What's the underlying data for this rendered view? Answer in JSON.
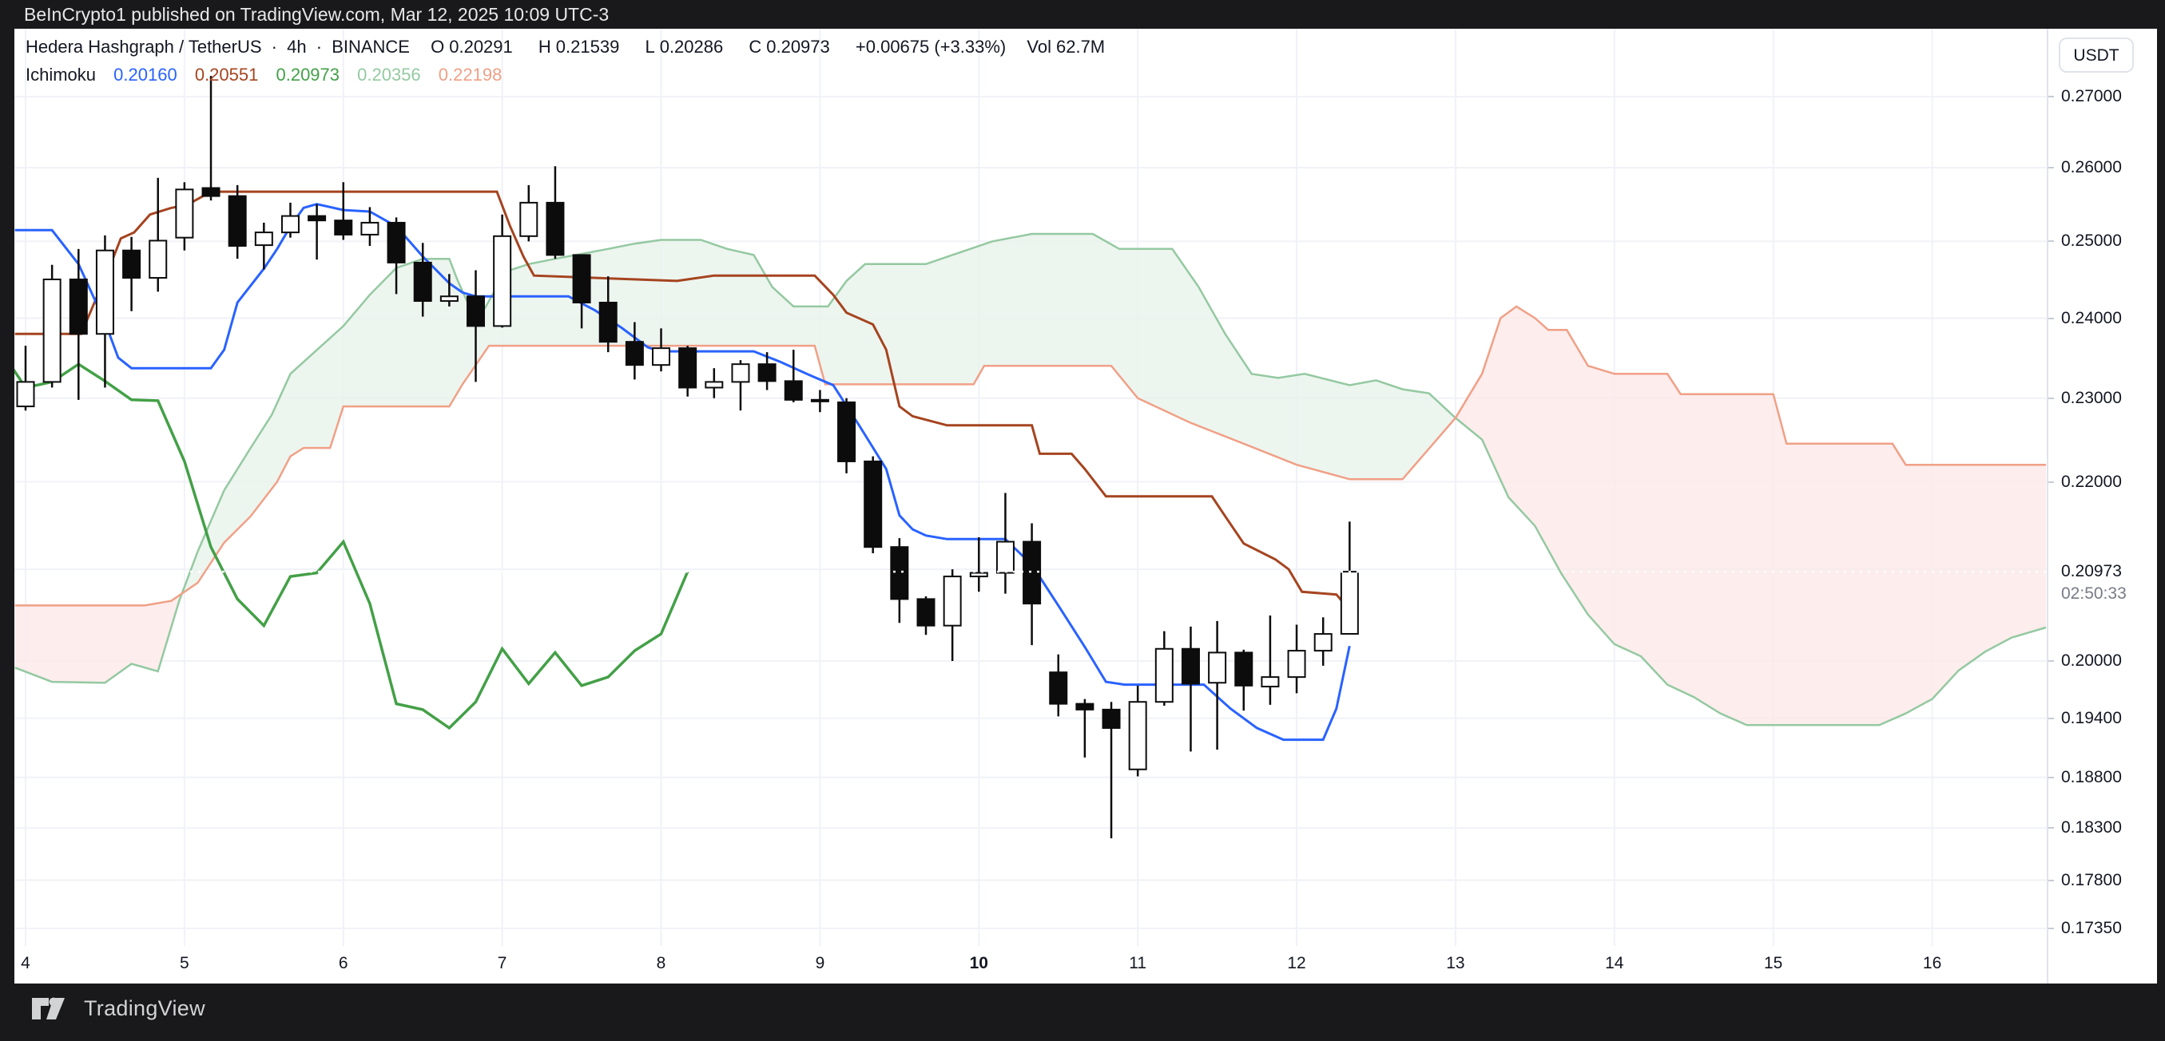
{
  "titlebar": {
    "text": "BeInCrypto1 published on TradingView.com, Mar 12, 2025 10:09 UTC-3"
  },
  "legend": {
    "symbol": "Hedera Hashgraph / TetherUS",
    "sep1": "·",
    "interval": "4h",
    "sep2": "·",
    "exchange": "BINANCE",
    "o_label": "O",
    "o": "0.20291",
    "h_label": "H",
    "h": "0.21539",
    "l_label": "L",
    "l": "0.20286",
    "c_label": "C",
    "c": "0.20973",
    "change": "+0.00675 (+3.33%)",
    "vol_label": "Vol",
    "vol": "62.7M",
    "indicator": "Ichimoku",
    "values": [
      {
        "text": "0.20160",
        "color": "#2962FF"
      },
      {
        "text": "0.20551",
        "color": "#A5441F"
      },
      {
        "text": "0.20973",
        "color": "#43A047"
      },
      {
        "text": "0.20356",
        "color": "#94C9A1"
      },
      {
        "text": "0.22198",
        "color": "#F0A086"
      }
    ]
  },
  "price_axis": {
    "currency_button": "USDT",
    "labels": [
      {
        "price": 0.27,
        "text": "0.27000"
      },
      {
        "price": 0.26,
        "text": "0.26000"
      },
      {
        "price": 0.25,
        "text": "0.25000"
      },
      {
        "price": 0.24,
        "text": "0.24000"
      },
      {
        "price": 0.23,
        "text": "0.23000"
      },
      {
        "price": 0.22,
        "text": "0.22000"
      },
      {
        "price": 0.2,
        "text": "0.20000"
      },
      {
        "price": 0.194,
        "text": "0.19400"
      },
      {
        "price": 0.188,
        "text": "0.18800"
      },
      {
        "price": 0.183,
        "text": "0.18300"
      },
      {
        "price": 0.178,
        "text": "0.17800"
      },
      {
        "price": 0.1735,
        "text": "0.17350"
      }
    ],
    "grid_prices": [
      0.27,
      0.26,
      0.25,
      0.24,
      0.23,
      0.22,
      0.21,
      0.2,
      0.194,
      0.188,
      0.183,
      0.178,
      0.1735
    ],
    "current": {
      "text": "0.20973",
      "price": 0.20973,
      "countdown": "02:50:33"
    }
  },
  "time_axis": {
    "labels": [
      {
        "text": "4",
        "day": 0,
        "bold": false
      },
      {
        "text": "5",
        "day": 1,
        "bold": false
      },
      {
        "text": "6",
        "day": 2,
        "bold": false
      },
      {
        "text": "7",
        "day": 3,
        "bold": false
      },
      {
        "text": "8",
        "day": 4,
        "bold": false
      },
      {
        "text": "9",
        "day": 5,
        "bold": false
      },
      {
        "text": "10",
        "day": 6,
        "bold": true
      },
      {
        "text": "11",
        "day": 7,
        "bold": false
      },
      {
        "text": "12",
        "day": 8,
        "bold": false
      },
      {
        "text": "13",
        "day": 9,
        "bold": false
      },
      {
        "text": "14",
        "day": 10,
        "bold": false
      },
      {
        "text": "15",
        "day": 11,
        "bold": false
      },
      {
        "text": "16",
        "day": 12,
        "bold": false
      }
    ]
  },
  "footer": {
    "brand": "TradingView"
  },
  "colors": {
    "up_fill": "#FFFFFF",
    "down_fill": "#0C0C0C",
    "candle_border": "#0C0C0C",
    "wick": "#0C0C0C",
    "grid": "#F0F2F7",
    "tenkan": "#2962FF",
    "kijun": "#A5441F",
    "chikou": "#43A047",
    "span_a": "#94C9A1",
    "span_b": "#F0A086",
    "cloud_bull": "#E9F3EB",
    "cloud_bear": "#FCE9E9",
    "price_line": "#FFFFFF"
  },
  "chart_data": {
    "type": "candlestick",
    "title": "Hedera Hashgraph / TetherUS 4h BINANCE with Ichimoku",
    "x_axis": {
      "unit": "4h candles from Mar 4 00:00",
      "candles_per_day": 6,
      "range_days": [
        4,
        16
      ]
    },
    "y_axis": {
      "scale": "log",
      "ylim": [
        0.1684,
        0.2742
      ],
      "grid": true,
      "legend_position": "top-left"
    },
    "current_bar": {
      "open": 0.20291,
      "high": 0.21539,
      "low": 0.20286,
      "close": 0.20973,
      "volume": "62.7M"
    },
    "candles_ohlc": [
      [
        0.229,
        0.2365,
        0.2285,
        0.232
      ],
      [
        0.232,
        0.2469,
        0.2313,
        0.245
      ],
      [
        0.245,
        0.249,
        0.2298,
        0.238
      ],
      [
        0.238,
        0.2508,
        0.2313,
        0.2488
      ],
      [
        0.2488,
        0.2506,
        0.2409,
        0.2452
      ],
      [
        0.2452,
        0.2586,
        0.2434,
        0.2501
      ],
      [
        0.2505,
        0.258,
        0.2488,
        0.257
      ],
      [
        0.2572,
        0.273,
        0.2555,
        0.2561
      ],
      [
        0.2561,
        0.2576,
        0.2477,
        0.2494
      ],
      [
        0.2495,
        0.2525,
        0.2463,
        0.2512
      ],
      [
        0.2512,
        0.2552,
        0.2505,
        0.2534
      ],
      [
        0.2534,
        0.255,
        0.2476,
        0.2528
      ],
      [
        0.2528,
        0.258,
        0.2502,
        0.2509
      ],
      [
        0.2509,
        0.2546,
        0.2494,
        0.2525
      ],
      [
        0.2525,
        0.2532,
        0.2431,
        0.2472
      ],
      [
        0.2472,
        0.2498,
        0.2402,
        0.2422
      ],
      [
        0.2422,
        0.2457,
        0.2415,
        0.2428
      ],
      [
        0.2428,
        0.2462,
        0.232,
        0.239
      ],
      [
        0.239,
        0.2536,
        0.2388,
        0.2507
      ],
      [
        0.2507,
        0.2576,
        0.25,
        0.2552
      ],
      [
        0.2552,
        0.2602,
        0.2477,
        0.2482
      ],
      [
        0.2482,
        0.2482,
        0.2387,
        0.242
      ],
      [
        0.242,
        0.2454,
        0.2357,
        0.237
      ],
      [
        0.237,
        0.2395,
        0.2323,
        0.2341
      ],
      [
        0.2341,
        0.2387,
        0.2333,
        0.2362
      ],
      [
        0.2362,
        0.2365,
        0.2302,
        0.2313
      ],
      [
        0.2313,
        0.2337,
        0.23,
        0.232
      ],
      [
        0.232,
        0.2347,
        0.2285,
        0.2342
      ],
      [
        0.2342,
        0.2357,
        0.231,
        0.2321
      ],
      [
        0.2321,
        0.236,
        0.2295,
        0.2298
      ],
      [
        0.2298,
        0.231,
        0.2283,
        0.2297
      ],
      [
        0.2295,
        0.23,
        0.221,
        0.2224
      ],
      [
        0.2224,
        0.223,
        0.2118,
        0.2125
      ],
      [
        0.2125,
        0.2135,
        0.2041,
        0.2067
      ],
      [
        0.2067,
        0.207,
        0.2028,
        0.2038
      ],
      [
        0.2038,
        0.21,
        0.2,
        0.2092
      ],
      [
        0.2092,
        0.2136,
        0.2075,
        0.2096
      ],
      [
        0.2096,
        0.2187,
        0.2073,
        0.2131
      ],
      [
        0.2131,
        0.2152,
        0.2017,
        0.2062
      ],
      [
        0.1988,
        0.2007,
        0.1942,
        0.1955
      ],
      [
        0.1955,
        0.196,
        0.19,
        0.1949
      ],
      [
        0.1949,
        0.1957,
        0.182,
        0.193
      ],
      [
        0.1888,
        0.1974,
        0.1881,
        0.1957
      ],
      [
        0.1957,
        0.2032,
        0.1953,
        0.2013
      ],
      [
        0.2013,
        0.2037,
        0.1906,
        0.1976
      ],
      [
        0.1977,
        0.2043,
        0.1908,
        0.2009
      ],
      [
        0.2009,
        0.2012,
        0.1948,
        0.1974
      ],
      [
        0.1973,
        0.2049,
        0.1954,
        0.1983
      ],
      [
        0.1983,
        0.2039,
        0.1966,
        0.2011
      ],
      [
        0.2011,
        0.2047,
        0.1995,
        0.2029
      ],
      [
        0.20291,
        0.21539,
        0.20286,
        0.20973
      ]
    ],
    "ichimoku": {
      "values": {
        "conversion": 0.2016,
        "base": 0.20551,
        "lagging": 0.20973,
        "leading_a": 0.20356,
        "leading_b": 0.22198
      },
      "lagging_displacement": -25,
      "conversion_points": [
        [
          -0.4,
          0.2515
        ],
        [
          1,
          0.2515
        ],
        [
          2,
          0.247
        ],
        [
          3,
          0.2395
        ],
        [
          3.5,
          0.235
        ],
        [
          4,
          0.2337
        ],
        [
          7,
          0.2337
        ],
        [
          7.5,
          0.236
        ],
        [
          8,
          0.242
        ],
        [
          9,
          0.2464
        ],
        [
          9.5,
          0.249
        ],
        [
          10,
          0.252
        ],
        [
          10.5,
          0.2545
        ],
        [
          11,
          0.255
        ],
        [
          12,
          0.2542
        ],
        [
          13,
          0.254
        ],
        [
          13.5,
          0.253
        ],
        [
          14,
          0.252
        ],
        [
          15,
          0.248
        ],
        [
          16,
          0.2445
        ],
        [
          16.5,
          0.2433
        ],
        [
          17,
          0.2428
        ],
        [
          20.5,
          0.2428
        ],
        [
          21.5,
          0.241
        ],
        [
          22.5,
          0.2388
        ],
        [
          23.5,
          0.2363
        ],
        [
          24,
          0.2358
        ],
        [
          27.5,
          0.2358
        ],
        [
          28.5,
          0.2345
        ],
        [
          29.5,
          0.233
        ],
        [
          30.5,
          0.2316
        ],
        [
          31.5,
          0.2266
        ],
        [
          32.5,
          0.2215
        ],
        [
          33,
          0.2161
        ],
        [
          33.5,
          0.2145
        ],
        [
          34,
          0.2138
        ],
        [
          34.8,
          0.2134
        ],
        [
          37,
          0.2134
        ],
        [
          38,
          0.2105
        ],
        [
          39,
          0.206
        ],
        [
          40,
          0.2015
        ],
        [
          40.8,
          0.1978
        ],
        [
          41.5,
          0.1975
        ],
        [
          44.5,
          0.1975
        ],
        [
          45.5,
          0.195
        ],
        [
          46.5,
          0.193
        ],
        [
          47.5,
          0.1918
        ],
        [
          49,
          0.1918
        ],
        [
          49.5,
          0.195
        ],
        [
          50,
          0.2016
        ]
      ],
      "base_points": [
        [
          -0.4,
          0.238
        ],
        [
          2.1,
          0.238
        ],
        [
          2.6,
          0.242
        ],
        [
          3.1,
          0.246
        ],
        [
          3.6,
          0.2504
        ],
        [
          4.1,
          0.2512
        ],
        [
          4.7,
          0.2536
        ],
        [
          5.5,
          0.2545
        ],
        [
          6.1,
          0.2549
        ],
        [
          7,
          0.2567
        ],
        [
          17.8,
          0.2567
        ],
        [
          18.3,
          0.252
        ],
        [
          18.8,
          0.248
        ],
        [
          19.2,
          0.2455
        ],
        [
          24.6,
          0.2448
        ],
        [
          26,
          0.2455
        ],
        [
          29.8,
          0.2455
        ],
        [
          30.5,
          0.243
        ],
        [
          31,
          0.2407
        ],
        [
          32,
          0.2392
        ],
        [
          32.5,
          0.236
        ],
        [
          33,
          0.229
        ],
        [
          33.5,
          0.2278
        ],
        [
          34.8,
          0.2267
        ],
        [
          38,
          0.2267
        ],
        [
          38.3,
          0.2233
        ],
        [
          39.5,
          0.2233
        ],
        [
          40,
          0.2215
        ],
        [
          40.8,
          0.2183
        ],
        [
          44.8,
          0.2183
        ],
        [
          45.3,
          0.216
        ],
        [
          46,
          0.2129
        ],
        [
          47.2,
          0.2111
        ],
        [
          47.7,
          0.21
        ],
        [
          48.2,
          0.2075
        ],
        [
          49.5,
          0.2072
        ],
        [
          50,
          0.2055
        ]
      ],
      "leading_a_points": [
        [
          -0.4,
          0.1993
        ],
        [
          1,
          0.1978
        ],
        [
          3,
          0.1977
        ],
        [
          4,
          0.1997
        ],
        [
          5,
          0.1989
        ],
        [
          5.8,
          0.2065
        ],
        [
          6.5,
          0.212
        ],
        [
          7.5,
          0.219
        ],
        [
          8.5,
          0.224
        ],
        [
          9.3,
          0.228
        ],
        [
          10,
          0.233
        ],
        [
          12,
          0.239
        ],
        [
          13,
          0.243
        ],
        [
          14,
          0.2465
        ],
        [
          15,
          0.2477
        ],
        [
          16,
          0.2477
        ],
        [
          16.3,
          0.245
        ],
        [
          16.8,
          0.2412
        ],
        [
          17.3,
          0.241
        ],
        [
          17.8,
          0.244
        ],
        [
          18.3,
          0.2462
        ],
        [
          19,
          0.247
        ],
        [
          20,
          0.2477
        ],
        [
          22,
          0.249
        ],
        [
          23,
          0.2497
        ],
        [
          24,
          0.2502
        ],
        [
          25.5,
          0.2502
        ],
        [
          26.5,
          0.249
        ],
        [
          27.5,
          0.2482
        ],
        [
          28.2,
          0.244
        ],
        [
          29,
          0.2415
        ],
        [
          30.3,
          0.2415
        ],
        [
          31,
          0.2448
        ],
        [
          31.7,
          0.247
        ],
        [
          34,
          0.247
        ],
        [
          35,
          0.2482
        ],
        [
          36.5,
          0.25
        ],
        [
          38,
          0.251
        ],
        [
          40.3,
          0.251
        ],
        [
          41.3,
          0.249
        ],
        [
          43.3,
          0.249
        ],
        [
          44.3,
          0.244
        ],
        [
          45.3,
          0.238
        ],
        [
          46.3,
          0.233
        ],
        [
          47.3,
          0.2325
        ],
        [
          48.3,
          0.233
        ],
        [
          50,
          0.2316
        ],
        [
          51,
          0.2322
        ],
        [
          52,
          0.2311
        ],
        [
          53,
          0.2306
        ],
        [
          54,
          0.2276
        ],
        [
          55,
          0.225
        ],
        [
          56,
          0.2182
        ],
        [
          57,
          0.2149
        ],
        [
          58,
          0.2095
        ],
        [
          59,
          0.205
        ],
        [
          60,
          0.2018
        ],
        [
          61,
          0.2005
        ],
        [
          62,
          0.1975
        ],
        [
          63,
          0.1962
        ],
        [
          64,
          0.1945
        ],
        [
          65,
          0.1933
        ],
        [
          70,
          0.1933
        ],
        [
          71,
          0.1945
        ],
        [
          72,
          0.196
        ],
        [
          73,
          0.199
        ],
        [
          74,
          0.201
        ],
        [
          75,
          0.2025
        ],
        [
          76.3,
          0.2036
        ]
      ],
      "leading_b_points": [
        [
          -0.4,
          0.206
        ],
        [
          4.5,
          0.206
        ],
        [
          5.5,
          0.2065
        ],
        [
          6.5,
          0.2085
        ],
        [
          7.5,
          0.213
        ],
        [
          8.5,
          0.216
        ],
        [
          9.5,
          0.22
        ],
        [
          10,
          0.223
        ],
        [
          10.5,
          0.224
        ],
        [
          11.5,
          0.224
        ],
        [
          12,
          0.229
        ],
        [
          16,
          0.229
        ],
        [
          16.5,
          0.2317
        ],
        [
          17.5,
          0.2365
        ],
        [
          29.8,
          0.2365
        ],
        [
          30.2,
          0.2317
        ],
        [
          35.8,
          0.2317
        ],
        [
          36.2,
          0.234
        ],
        [
          41,
          0.234
        ],
        [
          42,
          0.23
        ],
        [
          44,
          0.227
        ],
        [
          46,
          0.2245
        ],
        [
          48,
          0.222
        ],
        [
          50,
          0.2203
        ],
        [
          52,
          0.2203
        ],
        [
          54,
          0.2276
        ],
        [
          55,
          0.233
        ],
        [
          55.7,
          0.24
        ],
        [
          56.3,
          0.2415
        ],
        [
          57,
          0.24
        ],
        [
          57.5,
          0.2385
        ],
        [
          58.2,
          0.2385
        ],
        [
          59,
          0.234
        ],
        [
          60,
          0.233
        ],
        [
          62,
          0.233
        ],
        [
          62.5,
          0.2305
        ],
        [
          66,
          0.2305
        ],
        [
          66.5,
          0.2245
        ],
        [
          70.5,
          0.2245
        ],
        [
          71,
          0.222
        ],
        [
          76.3,
          0.222
        ]
      ]
    },
    "price_line": {
      "price": 0.20973,
      "style": "dotted"
    }
  }
}
